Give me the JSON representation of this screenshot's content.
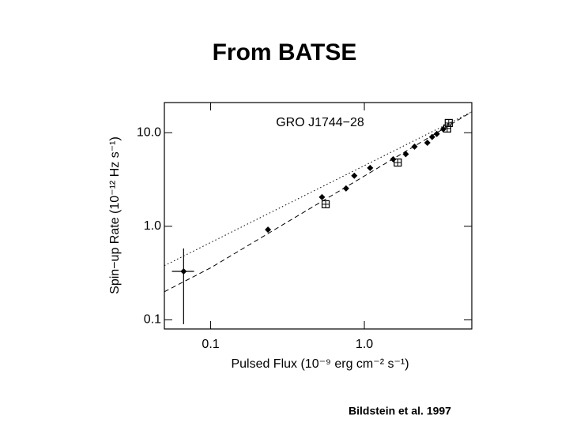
{
  "slide_title": "From BATSE",
  "citation": "Bildstein et al. 1997",
  "chart_data": {
    "type": "scatter",
    "title": "GRO J1744−28",
    "x_label": "Pulsed Flux (10⁻⁹ erg cm⁻² s⁻¹)",
    "y_label": "Spin−up Rate (10⁻¹² Hz s⁻¹)",
    "xscale": "log",
    "yscale": "log",
    "xlim": [
      0.05,
      5
    ],
    "ylim": [
      0.08,
      21
    ],
    "xticks": [
      0.1,
      {
        "value": 1,
        "label": "1.0"
      }
    ],
    "yticks": [
      0.1,
      {
        "value": 1,
        "label": "1.0"
      },
      {
        "value": 10,
        "label": "10.0"
      }
    ],
    "series": [
      {
        "marker": "diamond",
        "color": "#000000",
        "x": [
          0.0667,
          0.236,
          0.53,
          0.76,
          0.86,
          1.09,
          1.54,
          1.86,
          2.12,
          2.57,
          2.76,
          2.96,
          3.26
        ],
        "values": [
          0.33,
          0.92,
          2.05,
          2.54,
          3.47,
          4.2,
          5.2,
          5.9,
          7.1,
          7.8,
          9.0,
          9.7,
          10.9
        ],
        "x_low": [
          0.056,
          null,
          null,
          null,
          null,
          null,
          null,
          null,
          null,
          null,
          null,
          null,
          null
        ],
        "x_high": [
          0.078,
          null,
          null,
          null,
          null,
          null,
          null,
          null,
          null,
          null,
          null,
          null,
          null
        ],
        "y_low": [
          0.09,
          null,
          null,
          null,
          null,
          null,
          null,
          null,
          null,
          null,
          null,
          null,
          null
        ],
        "y_high": [
          0.58,
          null,
          null,
          null,
          null,
          null,
          null,
          null,
          null,
          null,
          null,
          null,
          null
        ]
      },
      {
        "marker": "square",
        "color": "#000000",
        "x": [
          0.56,
          1.65,
          3.46,
          3.54
        ],
        "values": [
          1.72,
          4.8,
          11.1,
          12.7
        ]
      },
      {
        "marker": "none",
        "line": "dotted",
        "color": "#000000",
        "x": [
          0.05,
          5
        ],
        "values": [
          0.38,
          16.7
        ]
      },
      {
        "marker": "none",
        "line": "dashed",
        "color": "#000000",
        "x": [
          0.05,
          0.1,
          5
        ],
        "values": [
          0.2,
          0.36,
          16.7
        ]
      }
    ]
  }
}
